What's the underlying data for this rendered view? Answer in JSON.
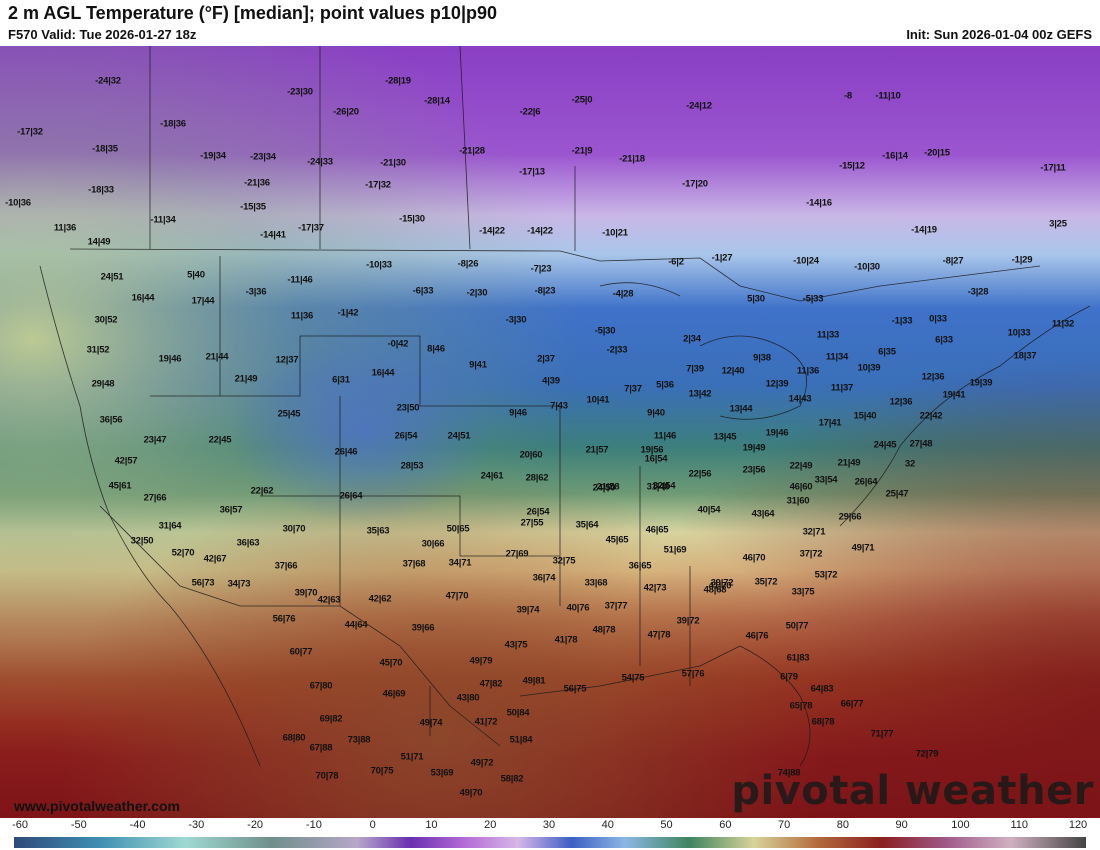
{
  "header": {
    "title": "2 m AGL Temperature (°F) [median]; point values p10|p90",
    "valid": "F570 Valid: Tue 2026-01-27 18z",
    "init": "Init: Sun 2026-01-04 00z GEFS"
  },
  "footer": {
    "website": "www.pivotalweather.com",
    "logo": "pivotal weather"
  },
  "colorbar": {
    "ticks": [
      "-60",
      "-50",
      "-40",
      "-30",
      "-20",
      "-10",
      "0",
      "10",
      "20",
      "30",
      "40",
      "50",
      "60",
      "70",
      "80",
      "90",
      "100",
      "110",
      "120"
    ]
  },
  "points": [
    "-24|32",
    "-23|30",
    "-28|19",
    "-28|14",
    "-22|6",
    "-25|0",
    "-24|12",
    "-8",
    "-11|10",
    "-17|32",
    "-18|36",
    "-26|20",
    "-18|35",
    "-19|34",
    "-23|34",
    "-24|33",
    "-21|30",
    "-21|28",
    "-21|9",
    "-21|18",
    "-15|12",
    "-16|14",
    "-20|15",
    "-17|11",
    "-18|33",
    "-21|36",
    "-17|13",
    "-17|32",
    "-17|20",
    "-10|36",
    "-15|35",
    "-11|34",
    "-14|41",
    "-17|37",
    "-15|30",
    "-14|22",
    "-14|22",
    "-10|21",
    "-14|16",
    "-14|19",
    "3|25",
    "11|36",
    "14|49",
    "-10|33",
    "-8|26",
    "-7|23",
    "-6|2",
    "-1|27",
    "-10|24",
    "-10|30",
    "-8|27",
    "-1|29",
    "24|51",
    "5|40",
    "-11|46",
    "16|44",
    "17|44",
    "-3|36",
    "-6|33",
    "-2|30",
    "-8|23",
    "-4|28",
    "5|30",
    "-5|33",
    "-3|28",
    "30|52",
    "11|36",
    "-1|42",
    "-3|30",
    "-5|30",
    "-1|33",
    "0|33",
    "11|32",
    "31|52",
    "-0|42",
    "8|46",
    "-2|33",
    "2|34",
    "11|33",
    "6|33",
    "10|33",
    "19|46",
    "21|44",
    "12|37",
    "2|37",
    "7|39",
    "9|38",
    "11|34",
    "6|35",
    "18|37",
    "29|48",
    "21|49",
    "6|31",
    "16|44",
    "9|41",
    "4|39",
    "12|40",
    "11|36",
    "10|39",
    "12|36",
    "19|39",
    "25|45",
    "23|50",
    "7|43",
    "10|41",
    "7|37",
    "5|36",
    "13|42",
    "12|39",
    "11|37",
    "19|41",
    "36|56",
    "9|46",
    "9|40",
    "13|44",
    "14|43",
    "15|40",
    "12|36",
    "22|42",
    "23|47",
    "22|45",
    "26|54",
    "24|51",
    "11|46",
    "13|45",
    "19|46",
    "17|41",
    "24|45",
    "27|48",
    "26|46",
    "21|57",
    "19|56",
    "19|49",
    "42|57",
    "28|53",
    "20|60",
    "16|54",
    "22|56",
    "23|56",
    "22|49",
    "21|49",
    "32",
    "45|61",
    "24|61",
    "28|62",
    "21|58",
    "32|54",
    "33|54",
    "26|64",
    "22|62",
    "24|50",
    "31|48",
    "46|60",
    "25|47",
    "27|66",
    "26|64",
    "26|54",
    "40|54",
    "31|60",
    "36|57",
    "43|64",
    "29|66",
    "31|64",
    "27|55",
    "35|64",
    "30|70",
    "50|65",
    "46|65",
    "32|50",
    "36|63",
    "35|63",
    "32|71",
    "30|66",
    "45|65",
    "49|71",
    "52|70",
    "42|67",
    "37|72",
    "27|69",
    "51|69",
    "37|66",
    "37|68",
    "34|71",
    "32|75",
    "36|65",
    "46|70",
    "53|72",
    "56|73",
    "34|73",
    "36|74",
    "33|68",
    "48|68",
    "39|72",
    "35|72",
    "39|70",
    "47|70",
    "41|70",
    "33|75",
    "42|63",
    "42|62",
    "42|73",
    "39|74",
    "40|76",
    "37|77",
    "56|76",
    "44|64",
    "39|66",
    "48|78",
    "47|78",
    "39|72",
    "46|76",
    "50|77",
    "41|78",
    "43|75",
    "60|77",
    "45|70",
    "49|79",
    "61|83",
    "56|75",
    "54|75",
    "57|76",
    "6|79",
    "47|82",
    "49|81",
    "64|83",
    "67|80",
    "46|69",
    "43|80",
    "65|78",
    "66|77",
    "69|82",
    "50|84",
    "68|78",
    "49|74",
    "41|72",
    "68|80",
    "73|88",
    "51|84",
    "71|77",
    "67|88",
    "51|71",
    "49|72",
    "72|79",
    "70|78",
    "70|75",
    "53|69",
    "74|88",
    "58|82",
    "49|70"
  ]
}
